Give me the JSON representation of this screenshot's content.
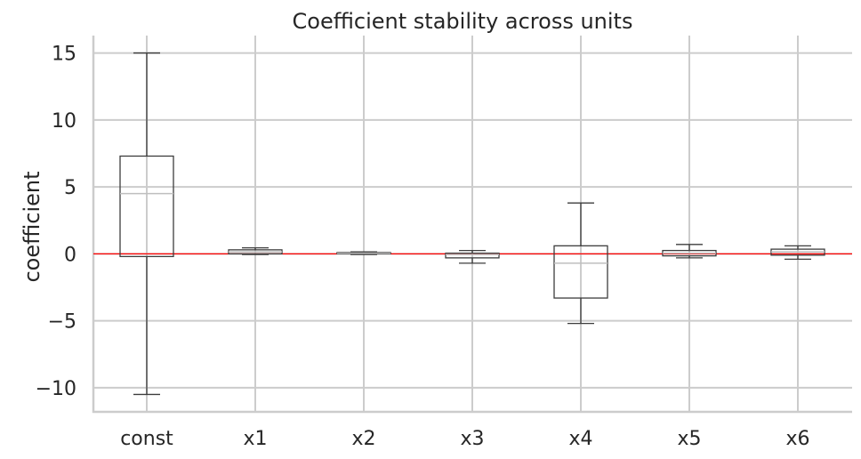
{
  "chart_data": {
    "type": "box",
    "title": "Coefficient stability across units",
    "xlabel": "",
    "ylabel": "coefficient",
    "ylim": [
      -11.8,
      16.3
    ],
    "yticks": [
      -10,
      -5,
      0,
      5,
      10,
      15
    ],
    "ytick_labels": [
      "−10",
      "−5",
      "0",
      "5",
      "10",
      "15"
    ],
    "grid": true,
    "reference_line": {
      "y": 0,
      "color": "#ff0000"
    },
    "categories": [
      "const",
      "x1",
      "x2",
      "x3",
      "x4",
      "x5",
      "x6"
    ],
    "boxes": [
      {
        "name": "const",
        "whisker_low": -10.5,
        "q1": -0.2,
        "median": 4.5,
        "q3": 7.3,
        "whisker_high": 15.0
      },
      {
        "name": "x1",
        "whisker_low": -0.05,
        "q1": 0.0,
        "median": 0.15,
        "q3": 0.3,
        "whisker_high": 0.45
      },
      {
        "name": "x2",
        "whisker_low": -0.05,
        "q1": 0.0,
        "median": 0.05,
        "q3": 0.1,
        "whisker_high": 0.15
      },
      {
        "name": "x3",
        "whisker_low": -0.7,
        "q1": -0.3,
        "median": -0.05,
        "q3": 0.05,
        "whisker_high": 0.25
      },
      {
        "name": "x4",
        "whisker_low": -5.2,
        "q1": -3.3,
        "median": -0.7,
        "q3": 0.6,
        "whisker_high": 3.8
      },
      {
        "name": "x5",
        "whisker_low": -0.3,
        "q1": -0.15,
        "median": 0.05,
        "q3": 0.25,
        "whisker_high": 0.7
      },
      {
        "name": "x6",
        "whisker_low": -0.4,
        "q1": -0.1,
        "median": 0.15,
        "q3": 0.35,
        "whisker_high": 0.6
      }
    ],
    "colors": {
      "box_edge": "#3d3d3d",
      "median": "#bfbfbf",
      "grid": "#cccccc",
      "axis": "#cccccc",
      "reference": "#ff0000"
    }
  }
}
